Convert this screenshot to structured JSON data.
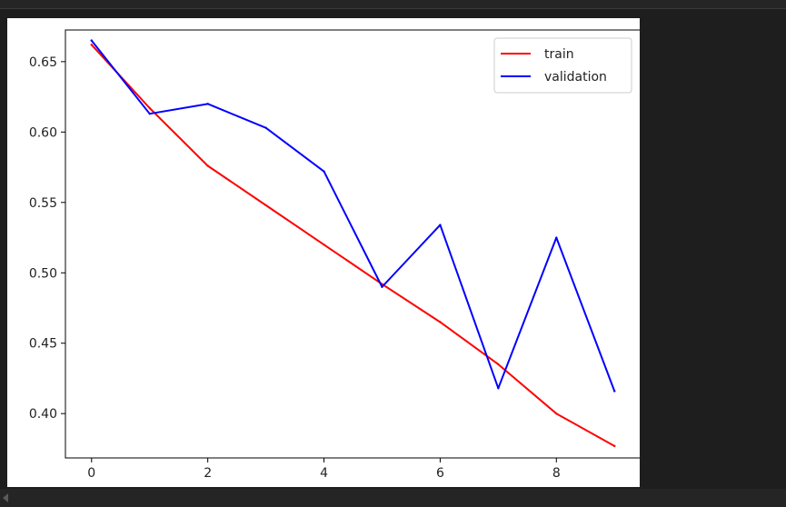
{
  "chart_data": {
    "type": "line",
    "title": "",
    "xlabel": "",
    "ylabel": "",
    "x": [
      0,
      1,
      2,
      3,
      4,
      5,
      6,
      7,
      8,
      9
    ],
    "xlim": [
      -0.45,
      9.45
    ],
    "ylim": [
      0.3685,
      0.6725
    ],
    "xticks": [
      0,
      2,
      4,
      6,
      8
    ],
    "xtick_labels": [
      "0",
      "2",
      "4",
      "6",
      "8"
    ],
    "yticks": [
      0.4,
      0.45,
      0.5,
      0.55,
      0.6,
      0.65
    ],
    "ytick_labels": [
      "0.40",
      "0.45",
      "0.50",
      "0.55",
      "0.60",
      "0.65"
    ],
    "grid": false,
    "legend_position": "upper right",
    "series": [
      {
        "name": "train",
        "color": "#ff0000",
        "values": [
          0.662,
          0.617,
          0.576,
          0.548,
          0.52,
          0.492,
          0.465,
          0.435,
          0.4,
          0.377
        ]
      },
      {
        "name": "validation",
        "color": "#0000ff",
        "values": [
          0.665,
          0.613,
          0.62,
          0.603,
          0.572,
          0.49,
          0.534,
          0.418,
          0.525,
          0.416
        ]
      }
    ]
  },
  "ui": {
    "scrollbar_icon": "chevron-left-icon"
  }
}
